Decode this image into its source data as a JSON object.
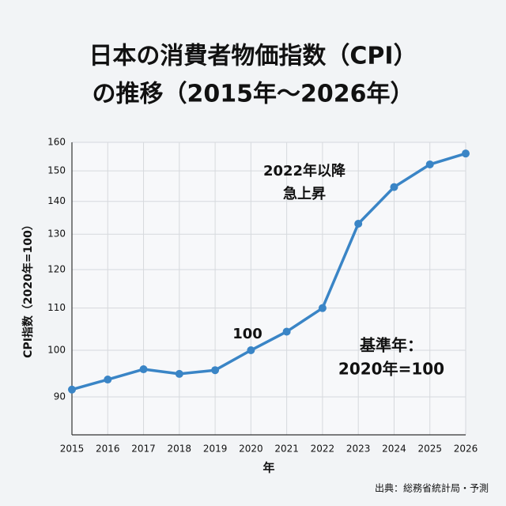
{
  "chart_data": {
    "type": "line",
    "title": [
      "日本の消費者物価指数（CPI）",
      "の推移（2015年〜2026年）"
    ],
    "x_label": "年",
    "y_label": "CPI指数（2020年=100）",
    "x": [
      2015,
      2016,
      2017,
      2018,
      2019,
      2020,
      2021,
      2022,
      2023,
      2024,
      2025,
      2026
    ],
    "xlim": [
      2015,
      2026
    ],
    "xticks": [
      2015,
      2016,
      2017,
      2018,
      2019,
      2020,
      2021,
      2022,
      2023,
      2024,
      2025,
      2026
    ],
    "series": [
      {
        "name": "CPI",
        "color": "#3a85c6",
        "values": [
          91.5,
          93.6,
          95.8,
          94.8,
          95.6,
          100,
          104.3,
          110,
          133.1,
          144.6,
          152.2,
          156
        ]
      }
    ],
    "ylim": [
      82.6,
      160
    ],
    "yticks": [
      90,
      100,
      110,
      120,
      130,
      140,
      150,
      160
    ],
    "log_scale": true,
    "grid": true,
    "annotations": [
      {
        "lines": [
          "2022年以降",
          "急上昇"
        ]
      },
      {
        "lines": [
          "100"
        ]
      },
      {
        "lines": [
          "基準年：",
          "2020年=100"
        ]
      }
    ],
    "source": "出典：総務省統計局・予測"
  }
}
